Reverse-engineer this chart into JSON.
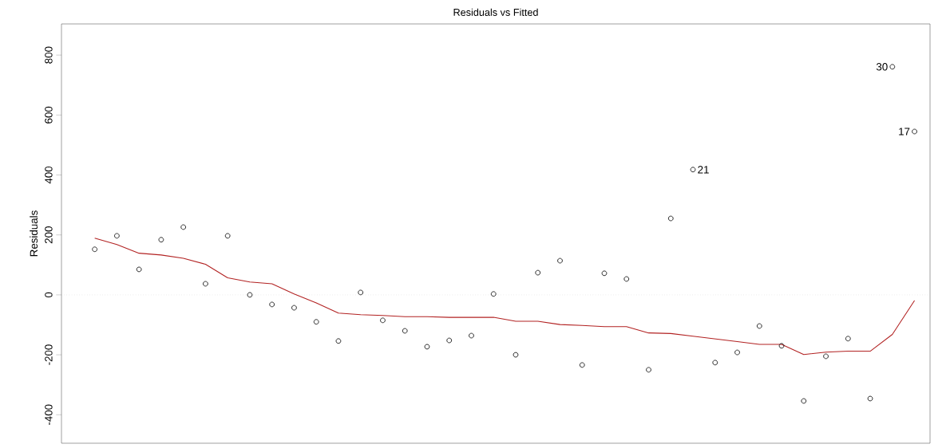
{
  "chart_data": {
    "type": "scatter",
    "title": "Residuals vs Fitted",
    "ylabel": "Residuals",
    "categories": [
      null,
      null,
      null,
      null,
      null,
      null,
      null,
      null,
      null,
      null,
      null,
      null,
      null,
      null,
      null,
      null,
      null,
      null,
      null,
      null,
      null,
      null,
      null,
      null,
      null,
      null,
      null,
      null,
      null,
      null,
      null,
      null,
      null,
      null,
      null,
      null,
      null,
      null
    ],
    "ylim": [
      -495,
      904
    ],
    "yticks": [
      -400,
      -200,
      0,
      200,
      400,
      600,
      800
    ],
    "series": [
      {
        "color": "#000000",
        "marker": "circle",
        "values": [
          152,
          197,
          85,
          184,
          226,
          37,
          197,
          0,
          -32,
          -43,
          -90,
          -154,
          8,
          -85,
          -120,
          -173,
          -152,
          -136,
          3,
          -200,
          74,
          114,
          -234,
          72,
          53,
          -250,
          255,
          418,
          -226,
          -192,
          -104,
          -170,
          -354,
          -205,
          -146,
          -346,
          761,
          545
        ]
      },
      {
        "type": "line",
        "color": "#b22222",
        "line_style": "solid",
        "values": [
          189,
          168,
          139,
          133,
          122,
          102,
          57,
          43,
          37,
          3,
          -27,
          -61,
          -66,
          -69,
          -73,
          -73,
          -75,
          -75,
          -75,
          -88,
          -88,
          -99,
          -102,
          -106,
          -106,
          -127,
          -129,
          -138,
          -147,
          -156,
          -165,
          -165,
          -199,
          -191,
          -188,
          -188,
          -132,
          -19
        ]
      }
    ],
    "ref_lines": [
      {
        "axis": "y",
        "value": 0,
        "color": "#c0c0c0",
        "line_style": "dotted"
      }
    ],
    "annotations": [
      "30",
      "17",
      "21"
    ]
  }
}
